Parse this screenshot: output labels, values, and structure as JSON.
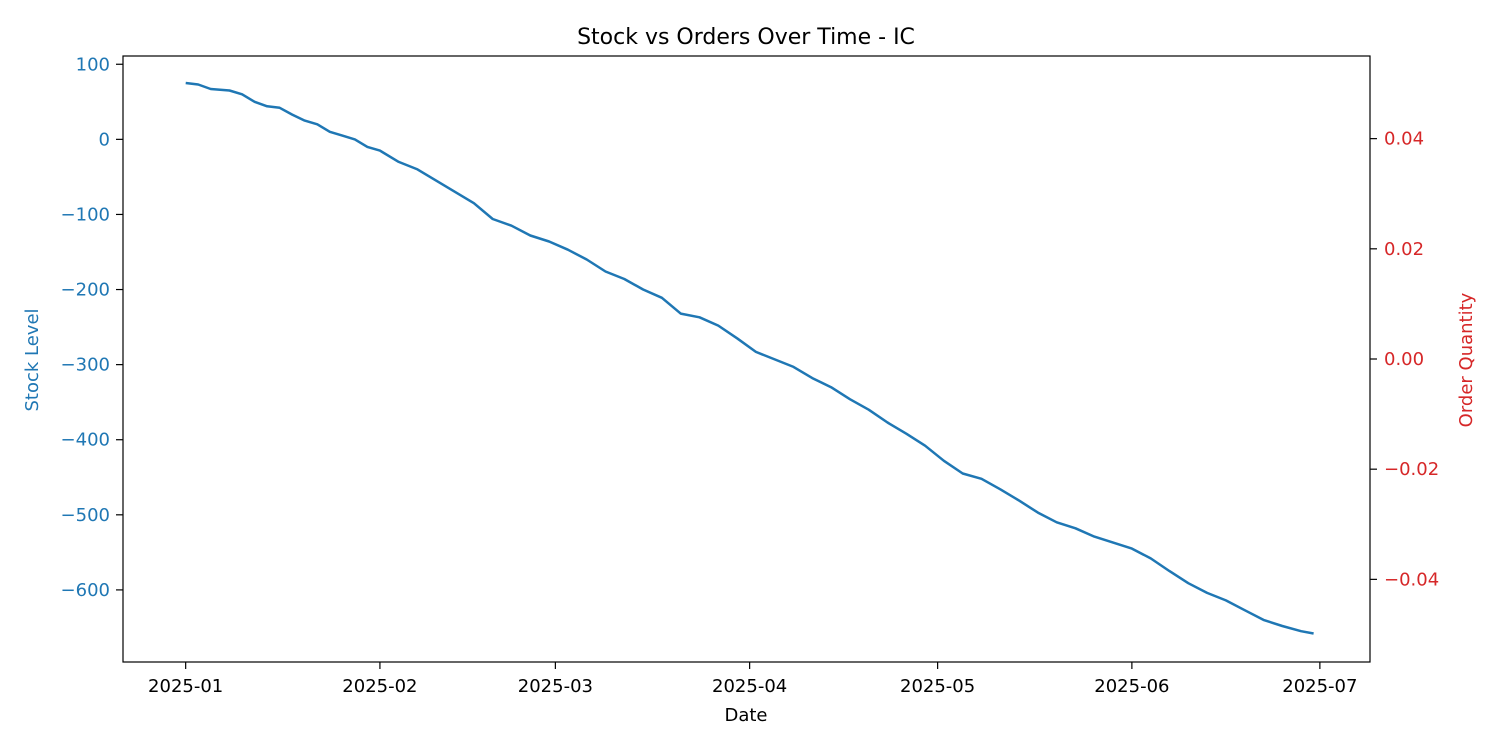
{
  "chart_data": {
    "type": "line",
    "title": "Stock vs Orders Over Time - IC",
    "xlabel": "Date",
    "ylabel": "Stock Level",
    "y2label": "Order Quantity",
    "xlim": [
      "2024-12-22",
      "2025-07-09"
    ],
    "ylim": [
      -696,
      111
    ],
    "y2lim": [
      -0.055,
      0.055
    ],
    "x_ticks": [
      {
        "date": "2025-01-01",
        "label": "2025-01"
      },
      {
        "date": "2025-02-01",
        "label": "2025-02"
      },
      {
        "date": "2025-03-01",
        "label": "2025-03"
      },
      {
        "date": "2025-04-01",
        "label": "2025-04"
      },
      {
        "date": "2025-05-01",
        "label": "2025-05"
      },
      {
        "date": "2025-06-01",
        "label": "2025-06"
      },
      {
        "date": "2025-07-01",
        "label": "2025-07"
      }
    ],
    "y_ticks": [
      {
        "value": 100,
        "label": "100"
      },
      {
        "value": 0,
        "label": "0"
      },
      {
        "value": -100,
        "label": "−100"
      },
      {
        "value": -200,
        "label": "−200"
      },
      {
        "value": -300,
        "label": "−300"
      },
      {
        "value": -400,
        "label": "−400"
      },
      {
        "value": -500,
        "label": "−500"
      },
      {
        "value": -600,
        "label": "−600"
      }
    ],
    "y2_ticks": [
      {
        "value": 0.04,
        "label": "0.04"
      },
      {
        "value": 0.02,
        "label": "0.02"
      },
      {
        "value": 0.0,
        "label": "0.00"
      },
      {
        "value": -0.02,
        "label": "−0.02"
      },
      {
        "value": -0.04,
        "label": "−0.04"
      }
    ],
    "grid": false,
    "colors": {
      "stock": "#1f77b4",
      "orders": "#d62728",
      "axis": "#000000"
    },
    "series": [
      {
        "axis": "left",
        "x": [
          "2025-01-01",
          "2025-01-03",
          "2025-01-05",
          "2025-01-08",
          "2025-01-10",
          "2025-01-12",
          "2025-01-14",
          "2025-01-16",
          "2025-01-18",
          "2025-01-20",
          "2025-01-22",
          "2025-01-24",
          "2025-01-26",
          "2025-01-28",
          "2025-01-30",
          "2025-02-01",
          "2025-02-04",
          "2025-02-07",
          "2025-02-10",
          "2025-02-13",
          "2025-02-16",
          "2025-02-19",
          "2025-02-22",
          "2025-02-25",
          "2025-02-28",
          "2025-03-03",
          "2025-03-06",
          "2025-03-09",
          "2025-03-12",
          "2025-03-15",
          "2025-03-18",
          "2025-03-21",
          "2025-03-24",
          "2025-03-27",
          "2025-03-30",
          "2025-04-02",
          "2025-04-05",
          "2025-04-08",
          "2025-04-11",
          "2025-04-14",
          "2025-04-17",
          "2025-04-20",
          "2025-04-23",
          "2025-04-26",
          "2025-04-29",
          "2025-05-02",
          "2025-05-05",
          "2025-05-08",
          "2025-05-11",
          "2025-05-14",
          "2025-05-17",
          "2025-05-20",
          "2025-05-23",
          "2025-05-26",
          "2025-05-29",
          "2025-06-01",
          "2025-06-04",
          "2025-06-07",
          "2025-06-10",
          "2025-06-13",
          "2025-06-16",
          "2025-06-19",
          "2025-06-22",
          "2025-06-25",
          "2025-06-28",
          "2025-06-30"
        ],
        "values": [
          75,
          73,
          67,
          65,
          60,
          50,
          44,
          42,
          33,
          25,
          20,
          10,
          5,
          0,
          -10,
          -15,
          -30,
          -40,
          -55,
          -70,
          -85,
          -106,
          -115,
          -128,
          -136,
          -147,
          -160,
          -176,
          -186,
          -200,
          -211,
          -232,
          -237,
          -248,
          -265,
          -283,
          -293,
          -303,
          -318,
          -330,
          -346,
          -360,
          -377,
          -392,
          -408,
          -428,
          -445,
          -452,
          -466,
          -481,
          -497,
          -510,
          -518,
          -529,
          -537,
          -545,
          -558,
          -575,
          -591,
          -604,
          -614,
          -627,
          -640,
          -648,
          -655,
          -658
        ]
      }
    ]
  }
}
